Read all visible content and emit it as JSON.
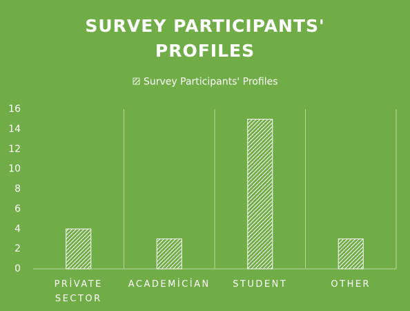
{
  "chart_data": {
    "type": "bar",
    "title": "SURVEY PARTICIPANTS' PROFILES",
    "legend": "Survey Participants' Profiles",
    "categories": [
      "PRİVATE SECTOR",
      "ACADEMİCİAN",
      "STUDENT",
      "OTHER"
    ],
    "values": [
      4,
      3,
      15,
      3
    ],
    "color": "#ffffff",
    "background": "#70ad47",
    "ylim": [
      0,
      16
    ],
    "yticks": [
      0,
      2,
      4,
      6,
      8,
      10,
      12,
      14,
      16
    ],
    "grid": true
  }
}
